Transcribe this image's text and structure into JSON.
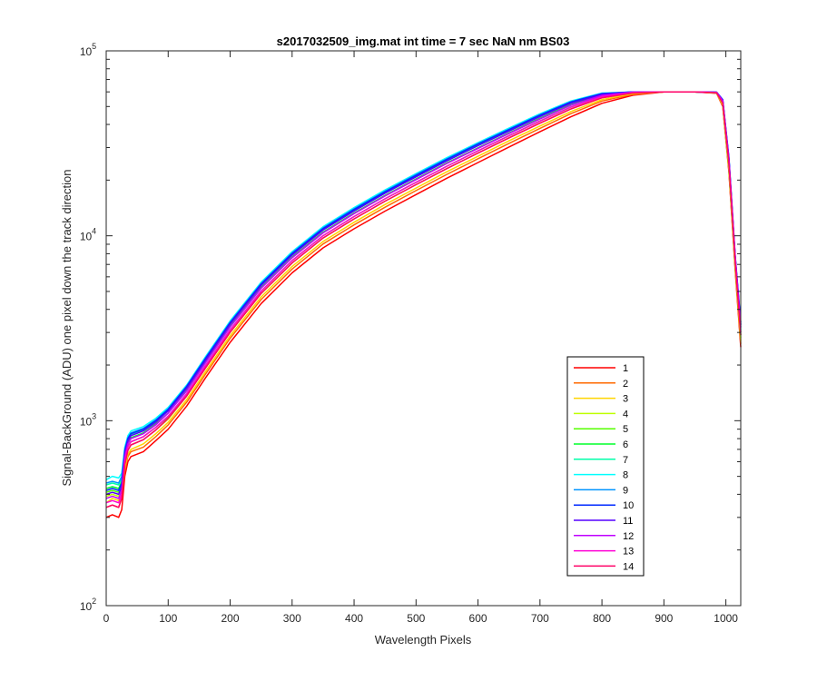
{
  "chart_data": {
    "type": "line",
    "title": "s2017032509_img.mat int time = 7 sec  NaN nm BS03",
    "xlabel": "Wavelength Pixels",
    "ylabel": "Signal-BackGround (ADU) one pixel down the track direction",
    "xlim": [
      0,
      1024
    ],
    "ylim": [
      100,
      100000
    ],
    "yscale": "log",
    "grid": false,
    "legend_position": "bottom-right",
    "x_ticks": [
      "0",
      "100",
      "200",
      "300",
      "400",
      "500",
      "600",
      "700",
      "800",
      "900",
      "1000"
    ],
    "y_ticks": [
      {
        "base": "10",
        "exp": "2",
        "value": 100
      },
      {
        "base": "10",
        "exp": "3",
        "value": 1000
      },
      {
        "base": "10",
        "exp": "4",
        "value": 10000
      },
      {
        "base": "10",
        "exp": "5",
        "value": 100000
      }
    ],
    "x": [
      0,
      10,
      20,
      25,
      30,
      35,
      40,
      60,
      80,
      100,
      130,
      160,
      200,
      250,
      300,
      350,
      400,
      450,
      500,
      550,
      600,
      650,
      700,
      750,
      800,
      850,
      900,
      950,
      985,
      995,
      1005,
      1015,
      1024
    ],
    "series": [
      {
        "name": "1",
        "color": "#ff0000",
        "values": [
          300,
          310,
          300,
          330,
          500,
          600,
          640,
          680,
          780,
          900,
          1200,
          1700,
          2650,
          4300,
          6300,
          8600,
          10900,
          13600,
          16700,
          20500,
          24900,
          30200,
          36500,
          44000,
          52000,
          57500,
          60000,
          60000,
          59000,
          50000,
          22000,
          6500,
          2500
        ]
      },
      {
        "name": "2",
        "color": "#ff6a00",
        "values": [
          340,
          350,
          340,
          380,
          540,
          640,
          680,
          720,
          820,
          950,
          1260,
          1780,
          2790,
          4520,
          6610,
          9030,
          11450,
          14280,
          17550,
          21500,
          26100,
          31600,
          38100,
          45800,
          53500,
          58200,
          60000,
          60000,
          59100,
          50500,
          22500,
          6700,
          2600
        ]
      },
      {
        "name": "3",
        "color": "#ffd500",
        "values": [
          360,
          380,
          370,
          400,
          560,
          660,
          700,
          750,
          850,
          980,
          1300,
          1840,
          2880,
          4670,
          6830,
          9320,
          11830,
          14760,
          18120,
          22200,
          26900,
          32600,
          39200,
          47000,
          54500,
          58800,
          60000,
          60000,
          59200,
          51000,
          23000,
          6800,
          2700
        ]
      },
      {
        "name": "4",
        "color": "#bfff00",
        "values": [
          390,
          400,
          390,
          420,
          590,
          700,
          740,
          790,
          890,
          1020,
          1360,
          1920,
          3000,
          4870,
          7120,
          9720,
          12330,
          15380,
          18890,
          23100,
          28000,
          33900,
          40700,
          48600,
          55800,
          59300,
          60000,
          60000,
          59300,
          51500,
          23500,
          7000,
          2800
        ]
      },
      {
        "name": "5",
        "color": "#55ff00",
        "values": [
          410,
          420,
          410,
          450,
          620,
          730,
          770,
          820,
          920,
          1050,
          1400,
          1980,
          3100,
          5020,
          7340,
          10010,
          12700,
          15850,
          19450,
          23800,
          28800,
          34800,
          41800,
          49700,
          56700,
          59700,
          60000,
          60000,
          59400,
          52000,
          24000,
          7100,
          2900
        ]
      },
      {
        "name": "6",
        "color": "#00ff2a",
        "values": [
          430,
          440,
          430,
          470,
          650,
          760,
          810,
          860,
          960,
          1100,
          1460,
          2070,
          3240,
          5250,
          7670,
          10470,
          13280,
          16560,
          20320,
          24800,
          29900,
          36000,
          43200,
          51200,
          57700,
          60000,
          60000,
          60000,
          59500,
          52500,
          24500,
          7300,
          3000
        ]
      },
      {
        "name": "7",
        "color": "#00ffaa",
        "values": [
          450,
          460,
          450,
          490,
          680,
          790,
          840,
          890,
          990,
          1140,
          1510,
          2140,
          3350,
          5430,
          7940,
          10830,
          13730,
          17120,
          21010,
          25600,
          30900,
          37100,
          44500,
          52500,
          58500,
          60000,
          60000,
          60000,
          59600,
          53000,
          25000,
          7400,
          3100
        ]
      },
      {
        "name": "8",
        "color": "#00ffff",
        "values": [
          480,
          500,
          490,
          520,
          720,
          830,
          880,
          930,
          1030,
          1180,
          1560,
          2210,
          3460,
          5610,
          8200,
          11190,
          14190,
          17690,
          21720,
          26500,
          31900,
          38200,
          45700,
          53600,
          59100,
          60000,
          60000,
          60000,
          59700,
          53500,
          25500,
          7600,
          3200
        ]
      },
      {
        "name": "9",
        "color": "#0095ff",
        "values": [
          460,
          470,
          460,
          500,
          700,
          810,
          860,
          910,
          1010,
          1160,
          1540,
          2180,
          3410,
          5530,
          8080,
          11030,
          13990,
          17440,
          21410,
          26100,
          31500,
          37700,
          45100,
          53100,
          58800,
          60000,
          60000,
          60000,
          59800,
          54000,
          26000,
          7700,
          3300
        ]
      },
      {
        "name": "10",
        "color": "#002aff",
        "values": [
          420,
          430,
          420,
          460,
          690,
          800,
          850,
          900,
          1000,
          1150,
          1530,
          2160,
          3380,
          5480,
          8010,
          10930,
          13860,
          17280,
          21210,
          25900,
          31300,
          37500,
          44900,
          52900,
          58700,
          60000,
          60000,
          60000,
          59800,
          54500,
          26500,
          7800,
          3400
        ]
      },
      {
        "name": "11",
        "color": "#5500ff",
        "values": [
          400,
          410,
          400,
          440,
          670,
          780,
          830,
          880,
          980,
          1130,
          1500,
          2120,
          3320,
          5380,
          7860,
          10730,
          13600,
          16960,
          20820,
          25400,
          30700,
          36800,
          44100,
          52100,
          58200,
          60000,
          60000,
          60000,
          59700,
          54000,
          26000,
          7700,
          3300
        ]
      },
      {
        "name": "12",
        "color": "#bf00ff",
        "values": [
          380,
          390,
          380,
          420,
          640,
          750,
          800,
          850,
          950,
          1100,
          1450,
          2050,
          3210,
          5200,
          7600,
          10370,
          13150,
          16400,
          20130,
          24600,
          29700,
          35700,
          42800,
          50800,
          57400,
          59800,
          60000,
          60000,
          59600,
          53500,
          25500,
          7600,
          3200
        ]
      },
      {
        "name": "13",
        "color": "#ff00d5",
        "values": [
          360,
          370,
          360,
          400,
          610,
          720,
          770,
          820,
          920,
          1060,
          1400,
          1980,
          3100,
          5020,
          7340,
          10010,
          12700,
          15850,
          19450,
          23800,
          28800,
          34700,
          41700,
          49600,
          56600,
          59500,
          60000,
          60000,
          59500,
          52500,
          25000,
          7400,
          3000
        ]
      },
      {
        "name": "14",
        "color": "#ff0066",
        "values": [
          340,
          350,
          340,
          380,
          580,
          690,
          740,
          790,
          890,
          1030,
          1360,
          1920,
          3010,
          4880,
          7130,
          9730,
          12340,
          15390,
          18900,
          23100,
          28000,
          33800,
          40600,
          48500,
          55700,
          59200,
          60000,
          60000,
          59400,
          52000,
          24500,
          7200,
          2900
        ]
      }
    ]
  }
}
